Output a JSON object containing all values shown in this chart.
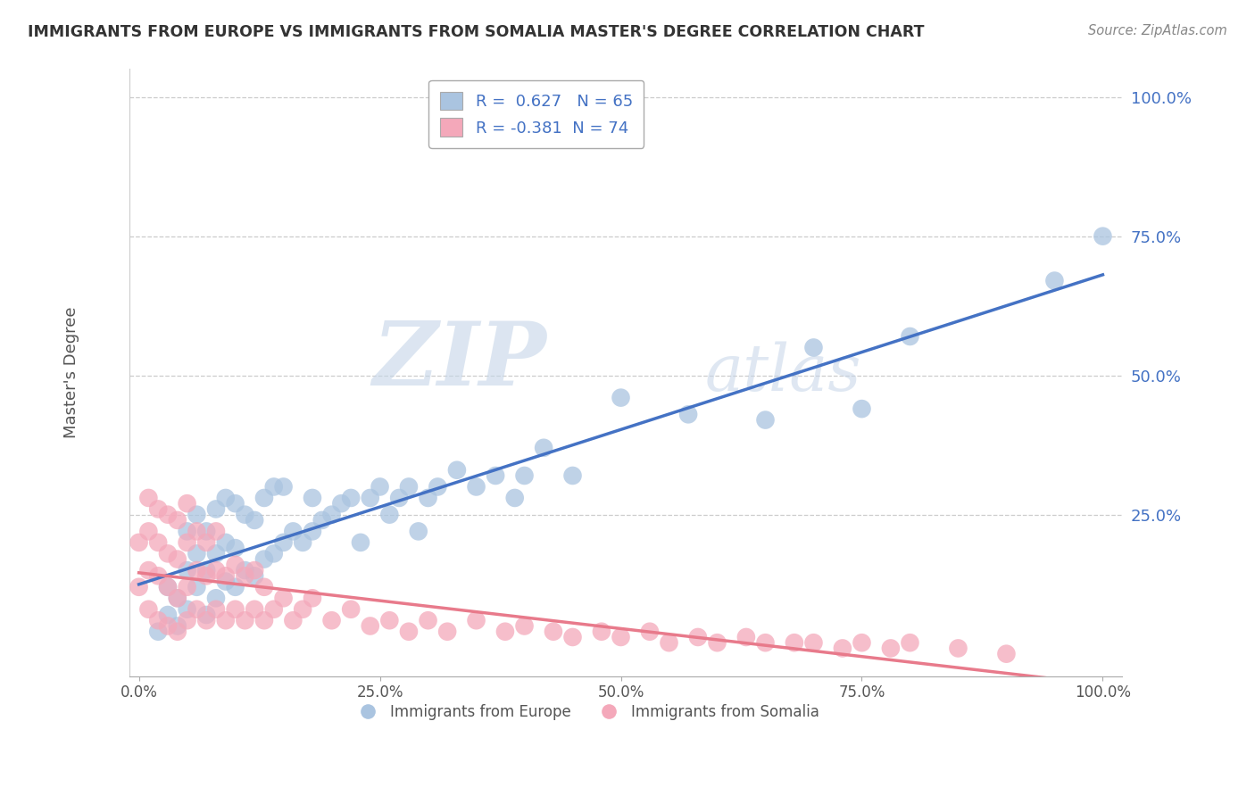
{
  "title": "IMMIGRANTS FROM EUROPE VS IMMIGRANTS FROM SOMALIA MASTER'S DEGREE CORRELATION CHART",
  "source": "Source: ZipAtlas.com",
  "ylabel": "Master's Degree",
  "xlim": [
    0,
    1.0
  ],
  "ylim": [
    -0.02,
    1.05
  ],
  "xtick_labels": [
    "0.0%",
    "25.0%",
    "50.0%",
    "75.0%",
    "100.0%"
  ],
  "xtick_vals": [
    0.0,
    0.25,
    0.5,
    0.75,
    1.0
  ],
  "ytick_labels": [
    "25.0%",
    "50.0%",
    "75.0%",
    "100.0%"
  ],
  "ytick_vals": [
    0.25,
    0.5,
    0.75,
    1.0
  ],
  "europe_R": 0.627,
  "europe_N": 65,
  "somalia_R": -0.381,
  "somalia_N": 74,
  "europe_color": "#aac4e0",
  "somalia_color": "#f4a8ba",
  "europe_line_color": "#4472c4",
  "somalia_line_color": "#e87a8b",
  "legend_europe_label": "Immigrants from Europe",
  "legend_somalia_label": "Immigrants from Somalia",
  "watermark_zip": "ZIP",
  "watermark_atlas": "atlas",
  "background_color": "#ffffff",
  "plot_background": "#ffffff",
  "europe_x": [
    0.02,
    0.03,
    0.03,
    0.04,
    0.04,
    0.05,
    0.05,
    0.05,
    0.06,
    0.06,
    0.06,
    0.07,
    0.07,
    0.07,
    0.08,
    0.08,
    0.08,
    0.09,
    0.09,
    0.09,
    0.1,
    0.1,
    0.1,
    0.11,
    0.11,
    0.12,
    0.12,
    0.13,
    0.13,
    0.14,
    0.14,
    0.15,
    0.15,
    0.16,
    0.17,
    0.18,
    0.18,
    0.19,
    0.2,
    0.21,
    0.22,
    0.23,
    0.24,
    0.25,
    0.26,
    0.27,
    0.28,
    0.29,
    0.3,
    0.31,
    0.33,
    0.35,
    0.37,
    0.39,
    0.4,
    0.42,
    0.45,
    0.5,
    0.57,
    0.65,
    0.7,
    0.75,
    0.8,
    0.95,
    1.0
  ],
  "europe_y": [
    0.04,
    0.07,
    0.12,
    0.05,
    0.1,
    0.08,
    0.15,
    0.22,
    0.12,
    0.18,
    0.25,
    0.07,
    0.15,
    0.22,
    0.1,
    0.18,
    0.26,
    0.13,
    0.2,
    0.28,
    0.12,
    0.19,
    0.27,
    0.15,
    0.25,
    0.14,
    0.24,
    0.17,
    0.28,
    0.18,
    0.3,
    0.2,
    0.3,
    0.22,
    0.2,
    0.22,
    0.28,
    0.24,
    0.25,
    0.27,
    0.28,
    0.2,
    0.28,
    0.3,
    0.25,
    0.28,
    0.3,
    0.22,
    0.28,
    0.3,
    0.33,
    0.3,
    0.32,
    0.28,
    0.32,
    0.37,
    0.32,
    0.46,
    0.43,
    0.42,
    0.55,
    0.44,
    0.57,
    0.67,
    0.75
  ],
  "somalia_x": [
    0.0,
    0.0,
    0.01,
    0.01,
    0.01,
    0.01,
    0.02,
    0.02,
    0.02,
    0.02,
    0.03,
    0.03,
    0.03,
    0.03,
    0.04,
    0.04,
    0.04,
    0.04,
    0.05,
    0.05,
    0.05,
    0.05,
    0.06,
    0.06,
    0.06,
    0.07,
    0.07,
    0.07,
    0.08,
    0.08,
    0.08,
    0.09,
    0.09,
    0.1,
    0.1,
    0.11,
    0.11,
    0.12,
    0.12,
    0.13,
    0.13,
    0.14,
    0.15,
    0.16,
    0.17,
    0.18,
    0.2,
    0.22,
    0.24,
    0.26,
    0.28,
    0.3,
    0.32,
    0.35,
    0.38,
    0.4,
    0.43,
    0.45,
    0.48,
    0.5,
    0.53,
    0.55,
    0.58,
    0.6,
    0.63,
    0.65,
    0.68,
    0.7,
    0.73,
    0.75,
    0.78,
    0.8,
    0.85,
    0.9
  ],
  "somalia_y": [
    0.12,
    0.2,
    0.08,
    0.15,
    0.22,
    0.28,
    0.06,
    0.14,
    0.2,
    0.26,
    0.05,
    0.12,
    0.18,
    0.25,
    0.04,
    0.1,
    0.17,
    0.24,
    0.06,
    0.12,
    0.2,
    0.27,
    0.08,
    0.15,
    0.22,
    0.06,
    0.14,
    0.2,
    0.08,
    0.15,
    0.22,
    0.06,
    0.14,
    0.08,
    0.16,
    0.06,
    0.14,
    0.08,
    0.15,
    0.06,
    0.12,
    0.08,
    0.1,
    0.06,
    0.08,
    0.1,
    0.06,
    0.08,
    0.05,
    0.06,
    0.04,
    0.06,
    0.04,
    0.06,
    0.04,
    0.05,
    0.04,
    0.03,
    0.04,
    0.03,
    0.04,
    0.02,
    0.03,
    0.02,
    0.03,
    0.02,
    0.02,
    0.02,
    0.01,
    0.02,
    0.01,
    0.02,
    0.01,
    0.0
  ]
}
